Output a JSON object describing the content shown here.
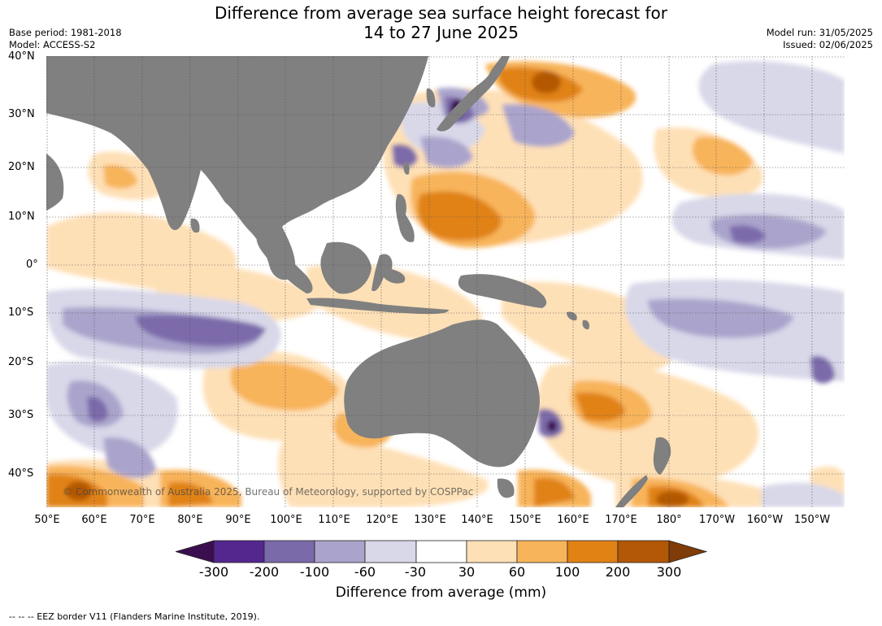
{
  "header": {
    "title_line1": "Difference from average sea surface height forecast for",
    "title_line2": "14 to 27 June 2025",
    "base_period": "Base period: 1981-2018",
    "model": "Model: ACCESS-S2",
    "model_run": "Model run: 31/05/2025",
    "issued": "Issued: 02/06/2025"
  },
  "map": {
    "copyright": "© Commonwealth of Australia 2025, Bureau of Meteorology, supported by COSPPac",
    "latitude_labels": [
      "40°N",
      "30°N",
      "20°N",
      "10°N",
      "0°",
      "10°S",
      "20°S",
      "30°S",
      "40°S"
    ],
    "longitude_labels": [
      "50°E",
      "60°E",
      "70°E",
      "80°E",
      "90°E",
      "100°E",
      "110°E",
      "120°E",
      "130°E",
      "140°E",
      "150°E",
      "160°E",
      "170°E",
      "180°",
      "170°W",
      "160°W",
      "150°W"
    ],
    "colors": {
      "land": "#808080",
      "ocean_neutral": "#ffffff"
    }
  },
  "colorbar": {
    "ticks": [
      "-300",
      "-200",
      "-100",
      "-60",
      "-30",
      "30",
      "60",
      "100",
      "200",
      "300"
    ],
    "colors": [
      "#3b0f4f",
      "#54278f",
      "#7b6aaa",
      "#aaa4cc",
      "#d8d8e9",
      "#ffffff",
      "#fee0b6",
      "#f8b45a",
      "#e08214",
      "#b35806",
      "#7f3b08"
    ],
    "label": "Difference from average (mm)"
  },
  "footer": {
    "eez_note": "--  --  -- EEZ border V11 (Flanders Marine Institute, 2019)."
  }
}
